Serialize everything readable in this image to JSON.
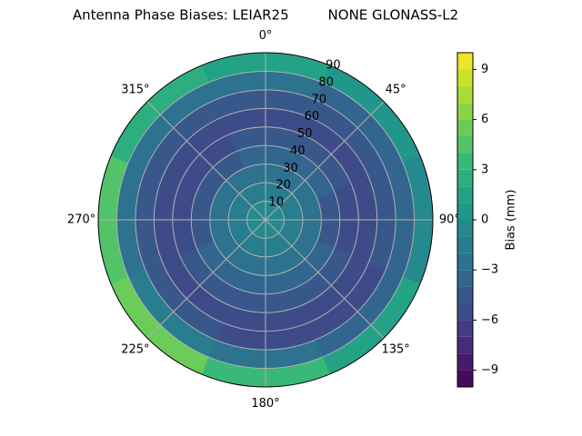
{
  "chart_data": {
    "type": "polar-contour",
    "title": "Antenna Phase Biases: LEIAR25         NONE GLONASS-L2",
    "theta": [
      0,
      45,
      90,
      135,
      180,
      225,
      270,
      315
    ],
    "r_edges": [
      0,
      10,
      20,
      30,
      40,
      50,
      60,
      70,
      80,
      90
    ],
    "values": [
      [
        -1,
        -1,
        -1,
        -1,
        -1,
        -1,
        -1,
        -1
      ],
      [
        -2,
        -2,
        -2,
        -2,
        -2,
        -2,
        -2,
        -2
      ],
      [
        -3,
        -3,
        -3,
        -3,
        -3,
        -3,
        -3,
        -3
      ],
      [
        -4,
        -4,
        -5,
        -4,
        -4,
        -4,
        -5,
        -5
      ],
      [
        -5,
        -5,
        -6,
        -5,
        -5,
        -5,
        -6,
        -6
      ],
      [
        -6,
        -6,
        -6,
        -6,
        -6,
        -6,
        -6,
        -6
      ],
      [
        -5,
        -5,
        -5,
        -6,
        -6,
        -5,
        -5,
        -5
      ],
      [
        -3,
        -4,
        -4,
        -4,
        -3,
        -2,
        -3,
        -3
      ],
      [
        1,
        0,
        -1,
        1,
        3,
        5,
        4,
        2
      ]
    ],
    "rlim": [
      0,
      90
    ],
    "rticks": [
      10,
      20,
      30,
      40,
      50,
      60,
      70,
      80,
      90
    ],
    "thetaticks": [
      {
        "value": 0,
        "label": "0°"
      },
      {
        "value": 45,
        "label": "45°"
      },
      {
        "value": 90,
        "label": "90°"
      },
      {
        "value": 135,
        "label": "135°"
      },
      {
        "value": 180,
        "label": "180°"
      },
      {
        "value": 225,
        "label": "225°"
      },
      {
        "value": 270,
        "label": "270°"
      },
      {
        "value": 315,
        "label": "315°"
      }
    ],
    "colorbar_label": "Bias (mm)",
    "zlim": [
      -10,
      10
    ],
    "levels": [
      -10,
      -9,
      -8,
      -7,
      -6,
      -5,
      -4,
      -3,
      -2,
      -1,
      0,
      1,
      2,
      3,
      4,
      5,
      6,
      7,
      8,
      9,
      10
    ],
    "zticks": [
      {
        "value": -9,
        "label": "−9"
      },
      {
        "value": -6,
        "label": "−6"
      },
      {
        "value": -3,
        "label": "−3"
      },
      0,
      3,
      6,
      9
    ],
    "grid": true
  }
}
